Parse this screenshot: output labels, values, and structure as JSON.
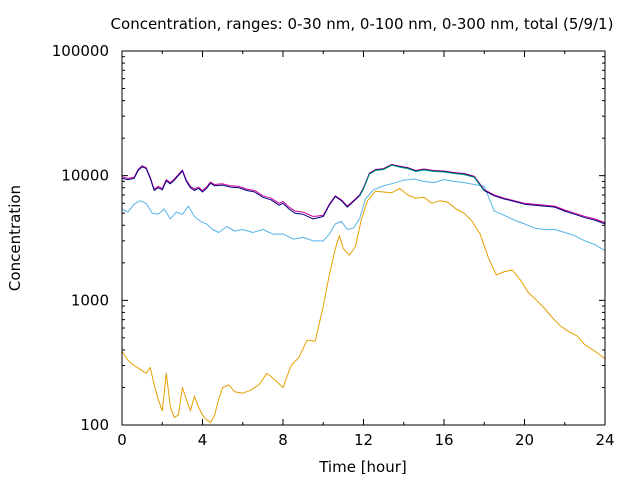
{
  "chart_data": {
    "type": "line",
    "title": "Concentration, ranges: 0-30 nm, 0-100 nm, 0-300 nm, total (5/9/1)",
    "xlabel": "Time [hour]",
    "ylabel": "Concentration",
    "xlim": [
      0,
      24
    ],
    "ylim": [
      100,
      100000
    ],
    "yscale": "log",
    "grid": false,
    "x_ticks": [
      0,
      4,
      8,
      12,
      16,
      20,
      24
    ],
    "y_ticks": [
      100,
      1000,
      10000,
      100000
    ],
    "x_tick_labels": [
      "0",
      "4",
      "8",
      "12",
      "16",
      "20",
      "24"
    ],
    "y_tick_labels": [
      "100",
      "1000",
      "10000",
      "100000"
    ],
    "series": [
      {
        "color": "#e69f00",
        "x": [
          0,
          0.3,
          0.6,
          0.9,
          1.2,
          1.4,
          1.6,
          1.8,
          2.0,
          2.2,
          2.4,
          2.6,
          2.8,
          3.0,
          3.2,
          3.4,
          3.6,
          3.8,
          4.0,
          4.2,
          4.4,
          4.6,
          4.8,
          5.0,
          5.3,
          5.6,
          6.0,
          6.4,
          6.8,
          7.2,
          7.6,
          8.0,
          8.4,
          8.8,
          9.2,
          9.6,
          10.0,
          10.3,
          10.6,
          10.8,
          11.0,
          11.3,
          11.6,
          11.9,
          12.2,
          12.6,
          13.0,
          13.4,
          13.8,
          14.2,
          14.6,
          15.0,
          15.4,
          15.8,
          16.2,
          16.6,
          17.0,
          17.4,
          17.8,
          18.2,
          18.6,
          19.0,
          19.4,
          19.8,
          20.2,
          20.6,
          21.0,
          21.4,
          21.8,
          22.2,
          22.6,
          23.0,
          23.4,
          23.8,
          24.0
        ],
        "y": [
          390,
          330,
          300,
          280,
          260,
          290,
          210,
          160,
          130,
          260,
          140,
          115,
          120,
          200,
          160,
          130,
          170,
          140,
          120,
          110,
          105,
          120,
          160,
          200,
          210,
          185,
          180,
          190,
          210,
          260,
          230,
          200,
          300,
          350,
          480,
          470,
          900,
          1600,
          2600,
          3300,
          2600,
          2300,
          2700,
          4500,
          6300,
          7500,
          7400,
          7300,
          7900,
          7000,
          6600,
          6700,
          6000,
          6300,
          6100,
          5400,
          5000,
          4300,
          3400,
          2200,
          1600,
          1700,
          1750,
          1450,
          1150,
          1000,
          860,
          720,
          620,
          560,
          520,
          440,
          400,
          360,
          340
        ]
      },
      {
        "color": "#56b4e9",
        "x": [
          0,
          0.3,
          0.6,
          0.9,
          1.2,
          1.5,
          1.8,
          2.1,
          2.4,
          2.7,
          3.0,
          3.3,
          3.6,
          3.9,
          4.2,
          4.5,
          4.8,
          5.2,
          5.6,
          6.0,
          6.5,
          7.0,
          7.5,
          8.0,
          8.5,
          9.0,
          9.5,
          10.0,
          10.3,
          10.6,
          10.9,
          11.2,
          11.5,
          11.8,
          12.1,
          12.5,
          13.0,
          13.5,
          14.0,
          14.5,
          15.0,
          15.5,
          16.0,
          16.5,
          17.0,
          17.5,
          18.0,
          18.5,
          19.0,
          19.5,
          20.0,
          20.5,
          21.0,
          21.5,
          22.0,
          22.5,
          23.0,
          23.5,
          24.0
        ],
        "y": [
          5400,
          5100,
          5900,
          6300,
          6000,
          5000,
          4900,
          5400,
          4500,
          5100,
          4900,
          5700,
          4700,
          4300,
          4100,
          3700,
          3500,
          3900,
          3600,
          3700,
          3500,
          3700,
          3400,
          3400,
          3100,
          3200,
          3000,
          3000,
          3400,
          4100,
          4300,
          3700,
          3800,
          4500,
          6500,
          7700,
          8300,
          8700,
          9200,
          9400,
          9000,
          8800,
          9300,
          9000,
          8800,
          8500,
          8200,
          5200,
          4800,
          4400,
          4100,
          3800,
          3700,
          3700,
          3500,
          3300,
          3000,
          2800,
          2500
        ]
      },
      {
        "color": "#cc0099",
        "x": [
          0,
          0.3,
          0.6,
          0.8,
          1.0,
          1.2,
          1.4,
          1.6,
          1.8,
          2.0,
          2.2,
          2.4,
          2.6,
          2.8,
          3.0,
          3.2,
          3.4,
          3.6,
          3.8,
          4.0,
          4.2,
          4.4,
          4.6,
          5.0,
          5.4,
          5.8,
          6.2,
          6.6,
          7.0,
          7.4,
          7.8,
          8.0,
          8.3,
          8.6,
          9.0,
          9.5,
          10.0,
          10.3,
          10.6,
          10.9,
          11.2,
          11.5,
          11.8,
          12.0,
          12.3,
          12.6,
          13.0,
          13.4,
          13.8,
          14.2,
          14.6,
          15.0,
          15.5,
          16.0,
          16.5,
          17.0,
          17.5,
          18.0,
          18.5,
          19.0,
          19.5,
          20.0,
          20.5,
          21.0,
          21.5,
          22.0,
          22.5,
          23.0,
          23.5,
          24.0
        ],
        "y": [
          9800,
          9500,
          9700,
          11200,
          12000,
          11600,
          9700,
          7800,
          8200,
          7900,
          9300,
          8800,
          9400,
          10200,
          11100,
          9200,
          8200,
          7800,
          8100,
          7600,
          8100,
          8900,
          8500,
          8600,
          8300,
          8200,
          7800,
          7600,
          6900,
          6600,
          6000,
          6200,
          5600,
          5200,
          5100,
          4700,
          4800,
          5900,
          6900,
          6400,
          5700,
          6300,
          7000,
          8000,
          10500,
          11200,
          11400,
          12300,
          11900,
          11600,
          11000,
          11300,
          11000,
          10900,
          10600,
          10400,
          9900,
          7700,
          7000,
          6600,
          6300,
          6000,
          5900,
          5800,
          5700,
          5300,
          5000,
          4700,
          4500,
          4200
        ]
      },
      {
        "color": "#000080",
        "x": [
          0,
          0.3,
          0.6,
          0.8,
          1.0,
          1.2,
          1.4,
          1.6,
          1.8,
          2.0,
          2.2,
          2.4,
          2.6,
          2.8,
          3.0,
          3.2,
          3.4,
          3.6,
          3.8,
          4.0,
          4.2,
          4.4,
          4.6,
          5.0,
          5.4,
          5.8,
          6.2,
          6.6,
          7.0,
          7.4,
          7.8,
          8.0,
          8.3,
          8.6,
          9.0,
          9.5,
          10.0,
          10.3,
          10.6,
          10.9,
          11.2,
          11.5,
          11.8,
          12.0,
          12.3,
          12.6,
          13.0,
          13.4,
          13.8,
          14.2,
          14.6,
          15.0,
          15.5,
          16.0,
          16.5,
          17.0,
          17.5,
          18.0,
          18.5,
          19.0,
          19.5,
          20.0,
          20.5,
          21.0,
          21.5,
          22.0,
          22.5,
          23.0,
          23.5,
          24.0
        ],
        "y": [
          9500,
          9300,
          9500,
          11000,
          11800,
          11400,
          9500,
          7600,
          8000,
          7700,
          9100,
          8600,
          9200,
          10000,
          10900,
          9000,
          8000,
          7600,
          7900,
          7400,
          7900,
          8700,
          8300,
          8400,
          8100,
          8000,
          7600,
          7400,
          6700,
          6400,
          5800,
          6000,
          5400,
          5000,
          4900,
          4500,
          4700,
          5800,
          6800,
          6300,
          5600,
          6200,
          6900,
          7900,
          10400,
          11100,
          11300,
          12200,
          11800,
          11500,
          10900,
          11200,
          10900,
          10800,
          10500,
          10300,
          9800,
          7600,
          6900,
          6500,
          6200,
          5900,
          5800,
          5700,
          5600,
          5200,
          4900,
          4600,
          4400,
          4100
        ]
      },
      {
        "color": "#009e73",
        "x": [
          11.8,
          12.0,
          12.3,
          12.6,
          13.0,
          13.4,
          13.8,
          14.2,
          14.6,
          15.0,
          15.5,
          16.0,
          16.5,
          17.0,
          17.5,
          18.0
        ],
        "y": [
          6800,
          7800,
          10300,
          11000,
          11200,
          12100,
          11700,
          11400,
          10800,
          11100,
          10800,
          10700,
          10400,
          10200,
          9700,
          7500
        ]
      }
    ]
  }
}
